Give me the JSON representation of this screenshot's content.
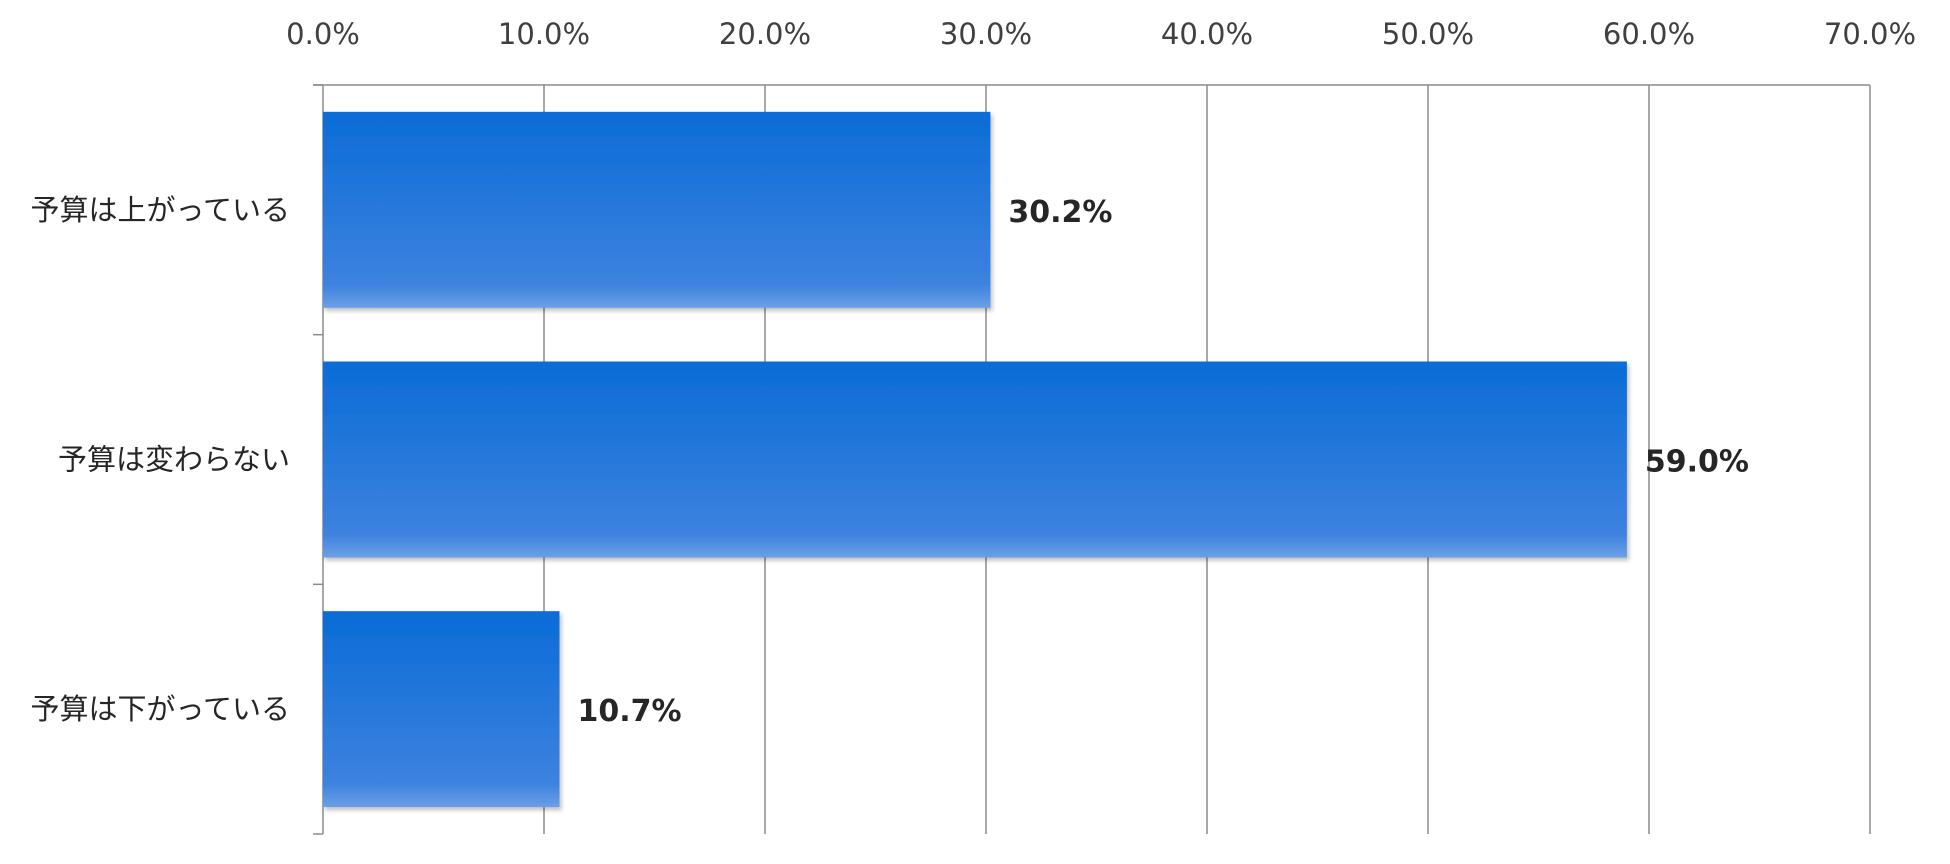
{
  "chart_data": {
    "type": "bar",
    "orientation": "horizontal",
    "categories": [
      "予算は上がっている",
      "予算は変わらない",
      "予算は下がっている"
    ],
    "values": [
      30.2,
      59.0,
      10.7
    ],
    "data_labels": [
      "30.2%",
      "59.0%",
      "10.7%"
    ],
    "title": "",
    "xlabel": "",
    "ylabel": "",
    "xlim": [
      0,
      70
    ],
    "x_ticks": [
      0,
      10,
      20,
      30,
      40,
      50,
      60,
      70
    ],
    "x_tick_labels": [
      "0.0%",
      "10.0%",
      "20.0%",
      "30.0%",
      "40.0%",
      "50.0%",
      "60.0%",
      "70.0%"
    ],
    "x_axis_position": "top",
    "grid": true,
    "legend": "none",
    "bar_color_top": "#0a6cd6",
    "bar_color_bottom": "#3d82df",
    "grid_color": "#8c8c8c"
  }
}
